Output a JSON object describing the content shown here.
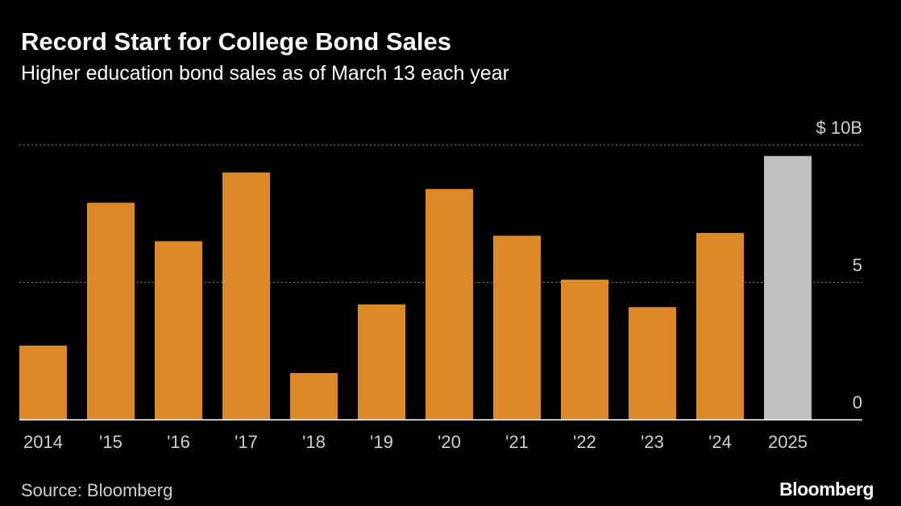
{
  "header": {
    "title": "Record Start for College Bond Sales",
    "subtitle": "Higher education bond sales as of March 13 each year"
  },
  "footer": {
    "source": "Source: Bloomberg",
    "logo": "Bloomberg"
  },
  "colors": {
    "background": "#000000",
    "bar": "#DB8A27",
    "highlight_bar": "#C0C0C0",
    "grid": "#777777",
    "axis": "#ffffff",
    "text": "#ffffff",
    "tick_text": "#d0d0d0"
  },
  "chart_data": {
    "type": "bar",
    "title": "Record Start for College Bond Sales",
    "subtitle": "Higher education bond sales as of March 13 each year",
    "categories": [
      "2014",
      "'15",
      "'16",
      "'17",
      "'18",
      "'19",
      "'20",
      "'21",
      "'22",
      "'23",
      "'24",
      "2025"
    ],
    "values": [
      2.7,
      7.9,
      6.5,
      9.0,
      1.7,
      4.2,
      8.4,
      6.7,
      5.1,
      4.1,
      6.8,
      9.6
    ],
    "highlight": [
      "2025"
    ],
    "xlabel": "",
    "ylabel": "",
    "ylim": [
      0,
      10
    ],
    "y_ticks": [
      0,
      5,
      10
    ],
    "y_tick_labels": [
      "0",
      "5",
      "$ 10B"
    ],
    "y_axis_side": "right",
    "grid": "horizontal dotted",
    "legend": "none"
  }
}
